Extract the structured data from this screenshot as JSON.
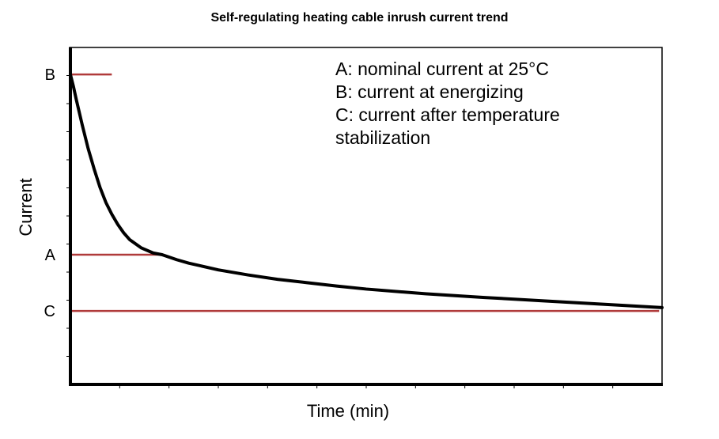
{
  "chart_data": {
    "type": "line",
    "title": "Self-regulating heating cable inrush current trend",
    "xlabel": "Time (min)",
    "ylabel": "Current",
    "ylim": [
      0,
      1
    ],
    "xlim": [
      0,
      1
    ],
    "grid": false,
    "y_ticks": [
      {
        "label": "B",
        "value": 0.92
      },
      {
        "label": "A",
        "value": 0.385
      },
      {
        "label": "C",
        "value": 0.218
      }
    ],
    "reference_lines": [
      {
        "label": "B",
        "value": 0.92,
        "x_end": 0.07
      },
      {
        "label": "A",
        "value": 0.385,
        "x_end": 0.155
      },
      {
        "label": "C",
        "value": 0.218,
        "x_end": 0.995
      }
    ],
    "series": [
      {
        "x": [
          0,
          0.005,
          0.01,
          0.02,
          0.03,
          0.04,
          0.05,
          0.06,
          0.07,
          0.08,
          0.09,
          0.1,
          0.12,
          0.14,
          0.155,
          0.18,
          0.2,
          0.25,
          0.3,
          0.35,
          0.4,
          0.45,
          0.5,
          0.6,
          0.7,
          0.8,
          0.9,
          1.0
        ],
        "values": [
          0.92,
          0.885,
          0.845,
          0.77,
          0.7,
          0.64,
          0.585,
          0.54,
          0.505,
          0.475,
          0.45,
          0.43,
          0.405,
          0.39,
          0.385,
          0.37,
          0.36,
          0.34,
          0.325,
          0.312,
          0.302,
          0.292,
          0.283,
          0.269,
          0.258,
          0.248,
          0.238,
          0.228
        ]
      }
    ],
    "legend_lines": [
      "A: nominal current at 25°C",
      "B: current at energizing",
      "C: current after temperature",
      "stabilization"
    ],
    "colors": {
      "curve": "#000000",
      "reference": "#b03a3a",
      "axis": "#000000"
    }
  }
}
